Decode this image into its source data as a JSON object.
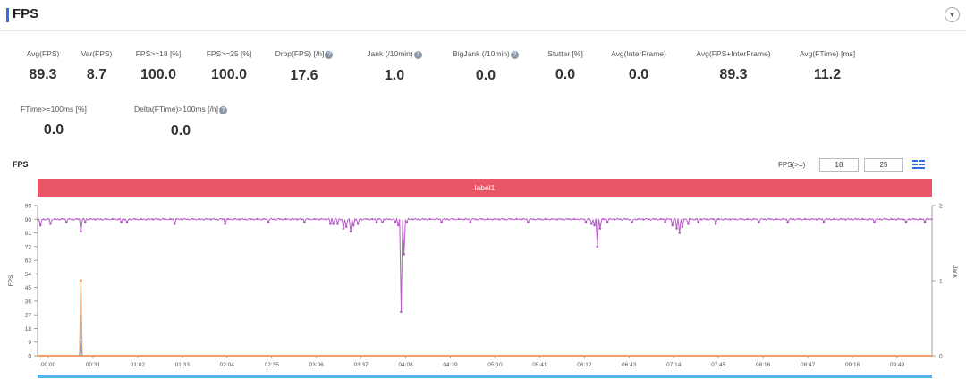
{
  "header": {
    "title": "FPS"
  },
  "metrics_row1": [
    {
      "label": "Avg(FPS)",
      "value": "89.3",
      "info": false
    },
    {
      "label": "Var(FPS)",
      "value": "8.7",
      "info": false
    },
    {
      "label": "FPS>=18 [%]",
      "value": "100.0",
      "info": false
    },
    {
      "label": "FPS>=25 [%]",
      "value": "100.0",
      "info": false
    },
    {
      "label": "Drop(FPS) [/h]",
      "value": "17.6",
      "info": true
    },
    {
      "label": "Jank (/10min)",
      "value": "1.0",
      "info": true
    },
    {
      "label": "BigJank (/10min)",
      "value": "0.0",
      "info": true
    },
    {
      "label": "Stutter [%]",
      "value": "0.0",
      "info": false
    },
    {
      "label": "Avg(InterFrame)",
      "value": "0.0",
      "info": false
    },
    {
      "label": "Avg(FPS+InterFrame)",
      "value": "89.3",
      "info": false
    },
    {
      "label": "Avg(FTime) [ms]",
      "value": "11.2",
      "info": false
    }
  ],
  "metrics_row2": [
    {
      "label": "FTime>=100ms [%]",
      "value": "0.0",
      "info": false
    },
    {
      "label": "Delta(FTime)>100ms [/h]",
      "value": "0.0",
      "info": true
    }
  ],
  "chart_section": {
    "title": "FPS",
    "filter_label": "FPS(>=)",
    "filter_value_1": "18",
    "filter_value_2": "25",
    "band_label": "label1"
  },
  "chart_data": {
    "type": "line",
    "ylabel": "FPS",
    "y2label": "Jank",
    "yticks": [
      0,
      9,
      18,
      27,
      36,
      45,
      54,
      63,
      72,
      81,
      90,
      99
    ],
    "y2ticks": [
      0,
      1,
      2
    ],
    "ylim": [
      0,
      99
    ],
    "y2lim": [
      0,
      2
    ],
    "xlim": [
      0,
      620
    ],
    "xticks": [
      "00:00",
      "00:31",
      "01:02",
      "01:33",
      "02:04",
      "02:35",
      "03:06",
      "03:37",
      "04:08",
      "04:39",
      "05:10",
      "05:41",
      "06:12",
      "06:43",
      "07:14",
      "07:45",
      "08:16",
      "08:47",
      "09:18",
      "09:49"
    ],
    "series": [
      {
        "name": "FPS",
        "color": "#b45ec4",
        "baseline": 90,
        "dips": [
          {
            "t": 2,
            "v": 86
          },
          {
            "t": 9,
            "v": 87
          },
          {
            "t": 20,
            "v": 88
          },
          {
            "t": 30,
            "v": 82
          },
          {
            "t": 33,
            "v": 88
          },
          {
            "t": 58,
            "v": 88
          },
          {
            "t": 62,
            "v": 88
          },
          {
            "t": 95,
            "v": 87
          },
          {
            "t": 130,
            "v": 87
          },
          {
            "t": 160,
            "v": 88
          },
          {
            "t": 185,
            "v": 88
          },
          {
            "t": 205,
            "v": 87
          },
          {
            "t": 235,
            "v": 88
          },
          {
            "t": 248,
            "v": 88
          },
          {
            "t": 203,
            "v": 87
          },
          {
            "t": 208,
            "v": 87
          },
          {
            "t": 212,
            "v": 84
          },
          {
            "t": 214,
            "v": 85
          },
          {
            "t": 217,
            "v": 82
          },
          {
            "t": 219,
            "v": 86
          },
          {
            "t": 222,
            "v": 87
          },
          {
            "t": 239,
            "v": 88
          },
          {
            "t": 250,
            "v": 86
          },
          {
            "t": 252,
            "v": 29
          },
          {
            "t": 254,
            "v": 67
          },
          {
            "t": 256,
            "v": 88
          },
          {
            "t": 280,
            "v": 88
          },
          {
            "t": 300,
            "v": 88
          },
          {
            "t": 340,
            "v": 88
          },
          {
            "t": 380,
            "v": 88
          },
          {
            "t": 384,
            "v": 87
          },
          {
            "t": 386,
            "v": 86
          },
          {
            "t": 388,
            "v": 72
          },
          {
            "t": 390,
            "v": 84
          },
          {
            "t": 395,
            "v": 88
          },
          {
            "t": 412,
            "v": 88
          },
          {
            "t": 435,
            "v": 88
          },
          {
            "t": 440,
            "v": 86
          },
          {
            "t": 443,
            "v": 84
          },
          {
            "t": 445,
            "v": 81
          },
          {
            "t": 447,
            "v": 85
          },
          {
            "t": 451,
            "v": 87
          },
          {
            "t": 458,
            "v": 88
          },
          {
            "t": 470,
            "v": 87
          },
          {
            "t": 500,
            "v": 88
          },
          {
            "t": 520,
            "v": 88
          },
          {
            "t": 545,
            "v": 88
          },
          {
            "t": 580,
            "v": 88
          },
          {
            "t": 602,
            "v": 88
          },
          {
            "t": 615,
            "v": 88
          }
        ]
      },
      {
        "name": "Jank",
        "color": "#f0a069",
        "axis": "right",
        "baseline": 0,
        "spikes": [
          {
            "t": 30,
            "v": 1
          }
        ]
      },
      {
        "name": "BigJank",
        "color": "#8fa3cf",
        "axis": "left",
        "baseline": 0,
        "spikes": [
          {
            "t": 30,
            "v": 10
          }
        ]
      }
    ]
  }
}
